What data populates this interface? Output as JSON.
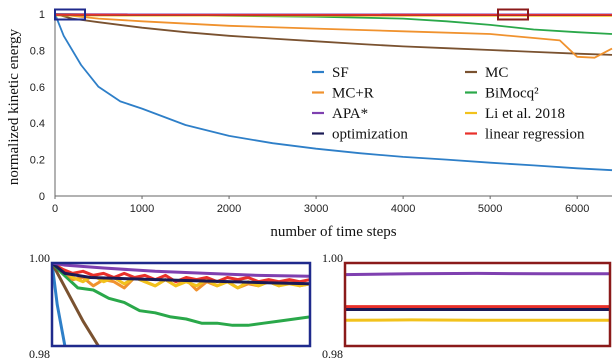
{
  "chart_data": [
    {
      "type": "line",
      "xlabel": "number of time steps",
      "ylabel": "normalized kinetic energy",
      "xlim": [
        0,
        6400
      ],
      "ylim": [
        0,
        1
      ],
      "xticks": [
        0,
        1000,
        2000,
        3000,
        4000,
        5000,
        6000
      ],
      "yticks": [
        0,
        0.2,
        0.4,
        0.6,
        0.8,
        1
      ],
      "grid": false,
      "legend": "center-right, two columns",
      "series": [
        {
          "name": "SF",
          "color": "#2e7fc8",
          "x": [
            0,
            100,
            300,
            500,
            750,
            1000,
            1500,
            2000,
            2500,
            3000,
            3500,
            4000,
            4500,
            5000,
            5500,
            6000,
            6400
          ],
          "y": [
            1.0,
            0.88,
            0.72,
            0.6,
            0.52,
            0.48,
            0.39,
            0.33,
            0.29,
            0.26,
            0.235,
            0.215,
            0.2,
            0.183,
            0.168,
            0.152,
            0.142
          ]
        },
        {
          "name": "MC",
          "color": "#7a5230",
          "x": [
            0,
            200,
            500,
            1000,
            1500,
            2000,
            2500,
            3000,
            3500,
            4000,
            4500,
            5000,
            5500,
            6000,
            6400
          ],
          "y": [
            1.0,
            0.975,
            0.955,
            0.925,
            0.9,
            0.88,
            0.865,
            0.85,
            0.835,
            0.822,
            0.812,
            0.802,
            0.792,
            0.782,
            0.775
          ]
        },
        {
          "name": "MC+R",
          "color": "#f0922e",
          "x": [
            0,
            500,
            1000,
            2000,
            3000,
            4000,
            5000,
            5800,
            6000,
            6200,
            6400
          ],
          "y": [
            1.0,
            0.975,
            0.96,
            0.935,
            0.92,
            0.905,
            0.89,
            0.855,
            0.765,
            0.76,
            0.81
          ]
        },
        {
          "name": "BiMocq²",
          "color": "#2aa84a",
          "x": [
            0,
            1000,
            2000,
            3000,
            4000,
            4500,
            5000,
            5500,
            6000,
            6400
          ],
          "y": [
            1.0,
            0.995,
            0.99,
            0.985,
            0.975,
            0.96,
            0.94,
            0.915,
            0.9,
            0.89
          ]
        },
        {
          "name": "APA*",
          "color": "#7f40b0",
          "x": [
            0,
            6400
          ],
          "y": [
            0.999,
            0.998
          ]
        },
        {
          "name": "Li et al. 2018",
          "color": "#f2c21c",
          "x": [
            0,
            6400
          ],
          "y": [
            0.992,
            0.99
          ]
        },
        {
          "name": "optimization",
          "color": "#1a1a55",
          "x": [
            0,
            6400
          ],
          "y": [
            0.995,
            0.994
          ]
        },
        {
          "name": "linear regression",
          "color": "#e8302a",
          "x": [
            0,
            6400
          ],
          "y": [
            0.996,
            0.995
          ]
        }
      ]
    },
    {
      "type": "line",
      "xlim": [
        0,
        1
      ],
      "ylim": [
        0.98,
        1.0
      ],
      "yticks": [
        0.98,
        1.0
      ],
      "ytick_labels": [
        "0.98",
        "1.00"
      ],
      "series": [
        {
          "name": "SF",
          "color": "#2e7fc8",
          "x": [
            0.0,
            0.02,
            0.05
          ],
          "y": [
            1.0,
            0.99,
            0.98
          ]
        },
        {
          "name": "MC",
          "color": "#7a5230",
          "x": [
            0.0,
            0.06,
            0.12,
            0.18
          ],
          "y": [
            1.0,
            0.993,
            0.986,
            0.98
          ]
        },
        {
          "name": "BiMocq²",
          "color": "#2aa84a",
          "x": [
            0.0,
            0.04,
            0.1,
            0.16,
            0.22,
            0.28,
            0.34,
            0.4,
            0.46,
            0.52,
            0.58,
            0.64,
            0.7,
            0.76,
            0.82,
            0.88,
            0.94,
            1.0
          ],
          "y": [
            1.0,
            0.9975,
            0.994,
            0.9935,
            0.9915,
            0.9905,
            0.9885,
            0.988,
            0.987,
            0.9865,
            0.9855,
            0.9855,
            0.985,
            0.985,
            0.9855,
            0.986,
            0.9865,
            0.987
          ]
        },
        {
          "name": "MC+R",
          "color": "#f0922e",
          "x": [
            0.0,
            0.04,
            0.08,
            0.12,
            0.16,
            0.2,
            0.24,
            0.28,
            0.32,
            0.36,
            0.4,
            0.44,
            0.48,
            0.52,
            0.56,
            0.6,
            0.64,
            0.68,
            0.72,
            0.76,
            0.8,
            0.84,
            0.88,
            0.92,
            0.96,
            1.0
          ],
          "y": [
            1.0,
            0.9985,
            0.996,
            0.9965,
            0.9945,
            0.996,
            0.9955,
            0.994,
            0.9965,
            0.9955,
            0.9945,
            0.996,
            0.9945,
            0.996,
            0.9935,
            0.9955,
            0.9945,
            0.9955,
            0.994,
            0.995,
            0.9945,
            0.9955,
            0.9945,
            0.9955,
            0.9945,
            0.995
          ]
        },
        {
          "name": "Li et al. 2018",
          "color": "#f2c21c",
          "x": [
            0.0,
            0.04,
            0.08,
            0.12,
            0.16,
            0.2,
            0.24,
            0.28,
            0.32,
            0.36,
            0.4,
            0.44,
            0.48,
            0.52,
            0.56,
            0.6,
            0.64,
            0.68,
            0.72,
            0.76,
            0.8,
            0.84,
            0.88,
            0.92,
            0.96,
            1.0
          ],
          "y": [
            1.0,
            0.9985,
            0.9965,
            0.9955,
            0.997,
            0.9955,
            0.9965,
            0.995,
            0.9965,
            0.9955,
            0.9945,
            0.996,
            0.9945,
            0.9955,
            0.9945,
            0.996,
            0.9945,
            0.9955,
            0.994,
            0.9955,
            0.9945,
            0.9955,
            0.9945,
            0.995,
            0.9945,
            0.995
          ]
        },
        {
          "name": "linear regression",
          "color": "#e8302a",
          "x": [
            0.0,
            0.04,
            0.08,
            0.12,
            0.16,
            0.2,
            0.24,
            0.28,
            0.32,
            0.36,
            0.4,
            0.44,
            0.48,
            0.52,
            0.56,
            0.6,
            0.64,
            0.68,
            0.72,
            0.76,
            0.8,
            0.84,
            0.88,
            0.92,
            0.96,
            1.0
          ],
          "y": [
            1.0,
            0.9985,
            0.9975,
            0.998,
            0.997,
            0.9975,
            0.9965,
            0.9975,
            0.9965,
            0.997,
            0.996,
            0.997,
            0.9955,
            0.9965,
            0.996,
            0.9965,
            0.9955,
            0.9965,
            0.996,
            0.9965,
            0.9955,
            0.996,
            0.9955,
            0.996,
            0.9955,
            0.996
          ]
        },
        {
          "name": "optimization",
          "color": "#1a1a55",
          "x": [
            0.0,
            0.05,
            0.15,
            0.3,
            0.5,
            0.7,
            0.85,
            1.0
          ],
          "y": [
            1.0,
            0.9975,
            0.9965,
            0.9962,
            0.9958,
            0.9955,
            0.9952,
            0.995
          ]
        },
        {
          "name": "APA*",
          "color": "#7f40b0",
          "x": [
            0.0,
            0.05,
            0.2,
            0.4,
            0.6,
            0.8,
            1.0
          ],
          "y": [
            1.0,
            0.9995,
            0.9988,
            0.998,
            0.9975,
            0.997,
            0.9968
          ]
        }
      ]
    },
    {
      "type": "line",
      "xlim": [
        0,
        1
      ],
      "ylim": [
        0.98,
        1.0
      ],
      "yticks": [
        0.98,
        1.0
      ],
      "ytick_labels": [
        "0.98",
        "1.00"
      ],
      "series": [
        {
          "name": "APA*",
          "color": "#7f40b0",
          "x": [
            0.0,
            0.25,
            0.5,
            0.75,
            1.0
          ],
          "y": [
            0.9972,
            0.9974,
            0.9975,
            0.9974,
            0.9974
          ]
        },
        {
          "name": "linear regression",
          "color": "#e8302a",
          "x": [
            0.0,
            0.25,
            0.5,
            0.75,
            1.0
          ],
          "y": [
            0.9895,
            0.9895,
            0.9895,
            0.9895,
            0.9895
          ]
        },
        {
          "name": "optimization",
          "color": "#1a1a55",
          "x": [
            0.0,
            0.25,
            0.5,
            0.75,
            1.0
          ],
          "y": [
            0.9888,
            0.9888,
            0.9888,
            0.9888,
            0.9888
          ]
        },
        {
          "name": "Li et al. 2018",
          "color": "#f2c21c",
          "x": [
            0.0,
            0.25,
            0.5,
            0.75,
            1.0
          ],
          "y": [
            0.9862,
            0.9863,
            0.9862,
            0.9862,
            0.9862
          ]
        }
      ]
    }
  ]
}
